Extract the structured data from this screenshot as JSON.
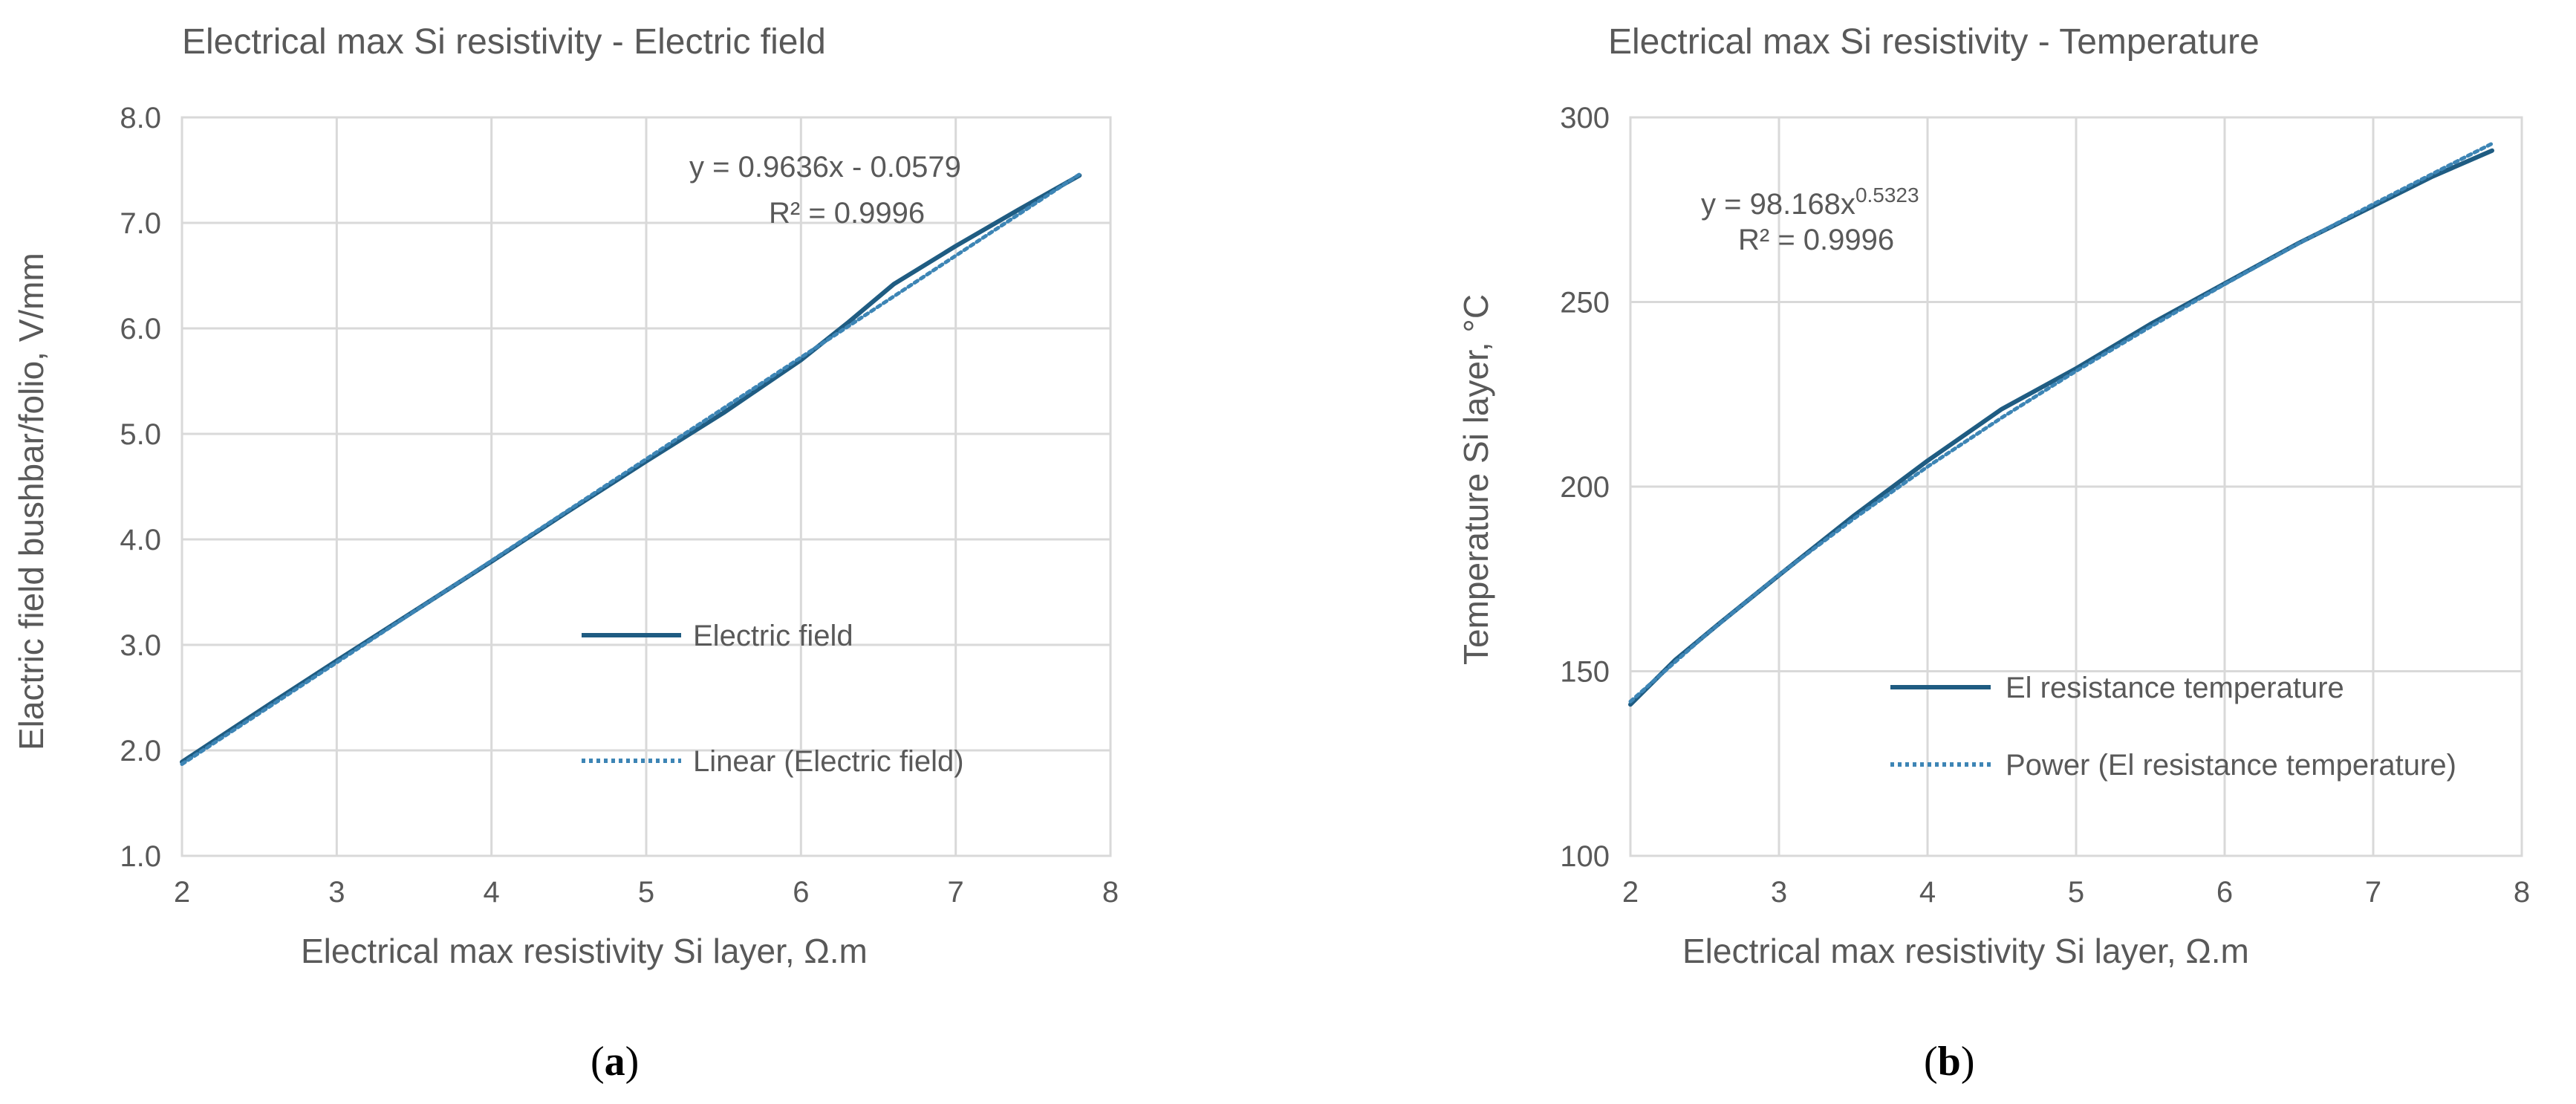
{
  "colors": {
    "series": "#1f5c82",
    "trendline": "#3d85b5",
    "grid": "#d9d9d9",
    "text": "#595959"
  },
  "chart_data": [
    {
      "type": "line",
      "panel_label": "a",
      "title": "Electrical max Si resistivity - Electric field",
      "xlabel": "Electrical max resistivity Si layer, Ω.m",
      "ylabel": "Elactric field bushbar/folio, V/mm",
      "xlim": [
        2,
        8
      ],
      "ylim": [
        1.0,
        8.0
      ],
      "xticks": [
        "2",
        "3",
        "4",
        "5",
        "6",
        "7",
        "8"
      ],
      "yticks": [
        "1.0",
        "2.0",
        "3.0",
        "4.0",
        "5.0",
        "6.0",
        "7.0",
        "8.0"
      ],
      "grid": true,
      "legend_position": "center-right",
      "series": [
        {
          "name": "Electric field",
          "style": "solid",
          "x": [
            2.0,
            2.3,
            2.6,
            3.0,
            3.5,
            4.0,
            4.5,
            5.0,
            5.5,
            6.0,
            6.3,
            6.6,
            7.0,
            7.4,
            7.8
          ],
          "y": [
            1.89,
            2.18,
            2.47,
            2.85,
            3.32,
            3.79,
            4.27,
            4.74,
            5.2,
            5.7,
            6.05,
            6.42,
            6.78,
            7.12,
            7.45
          ]
        },
        {
          "name": "Linear (Electric field)",
          "style": "dotted",
          "x": [
            2.0,
            7.8
          ],
          "y": [
            1.87,
            7.46
          ]
        }
      ],
      "annotations": {
        "equation": "y = 0.9636x - 0.0579",
        "r_squared": "R² = 0.9996"
      }
    },
    {
      "type": "line",
      "panel_label": "b",
      "title": "Electrical max Si resistivity - Temperature",
      "xlabel": "Electrical max resistivity Si layer, Ω.m",
      "ylabel": "Temperature Si layer, °C",
      "xlim": [
        2,
        8
      ],
      "ylim": [
        100,
        300
      ],
      "xticks": [
        "2",
        "3",
        "4",
        "5",
        "6",
        "7",
        "8"
      ],
      "yticks": [
        "100",
        "150",
        "200",
        "250",
        "300"
      ],
      "grid": true,
      "legend_position": "bottom-right",
      "series": [
        {
          "name": "El resistance temperature",
          "style": "solid",
          "x": [
            2.0,
            2.3,
            2.6,
            3.0,
            3.5,
            4.0,
            4.5,
            5.0,
            5.5,
            6.0,
            6.5,
            7.0,
            7.4,
            7.8
          ],
          "y": [
            141,
            153,
            163,
            176,
            192,
            207,
            221,
            232,
            244,
            255,
            266,
            276,
            284,
            291
          ]
        },
        {
          "name": "Power (El resistance temperature)",
          "style": "dotted",
          "x": [
            2.0,
            2.5,
            3.0,
            3.5,
            4.0,
            4.5,
            5.0,
            5.5,
            6.0,
            6.5,
            7.0,
            7.5,
            7.8
          ],
          "y": [
            141.8,
            159.6,
            176.1,
            191.2,
            205.4,
            218.7,
            231.3,
            243.3,
            254.8,
            265.9,
            276.5,
            286.8,
            292.9
          ]
        }
      ],
      "annotations": {
        "equation_prefix": "y = 98.168x",
        "equation_exponent": "0.5323",
        "r_squared": "R² = 0.9996"
      }
    }
  ]
}
